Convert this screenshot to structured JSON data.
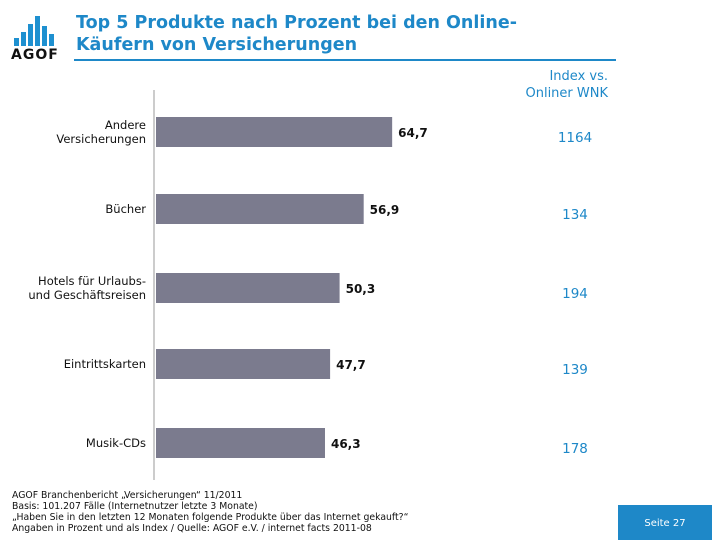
{
  "header": {
    "logo_text": "AGOF",
    "title_line1": "Top 5 Produkte nach Prozent bei den Online-",
    "title_line2": "Käufern von Versicherungen"
  },
  "index_header": {
    "line1": "Index vs.",
    "line2": "Onliner WNK"
  },
  "colors": {
    "accent": "#1e88c8",
    "bar": "#7b7b8e",
    "axis": "#999999"
  },
  "chart_data": {
    "type": "bar",
    "orientation": "horizontal",
    "categories": [
      [
        "Andere",
        "Versicherungen"
      ],
      [
        "Bücher"
      ],
      [
        "Hotels für Urlaubs-",
        "und Geschäftsreisen"
      ],
      [
        "Eintrittskarten"
      ],
      [
        "Musik-CDs"
      ]
    ],
    "values": [
      64.7,
      56.9,
      50.3,
      47.7,
      46.3
    ],
    "value_labels": [
      "64,7",
      "56,9",
      "50,3",
      "47,7",
      "46,3"
    ],
    "index_values": [
      "1164",
      "134",
      "194",
      "139",
      "178"
    ],
    "xlim": [
      0,
      100
    ]
  },
  "footer": {
    "line1": "AGOF Branchenbericht „Versicherungen“ 11/2011",
    "line2": "Basis: 101.207 Fälle (Internetnutzer letzte 3 Monate)",
    "line3": "„Haben Sie in den letzten 12 Monaten folgende Produkte über das Internet gekauft?“",
    "line4": "Angaben in Prozent und als Index / Quelle: AGOF e.V. / internet facts 2011-08"
  },
  "page": {
    "label": "Seite 27"
  }
}
